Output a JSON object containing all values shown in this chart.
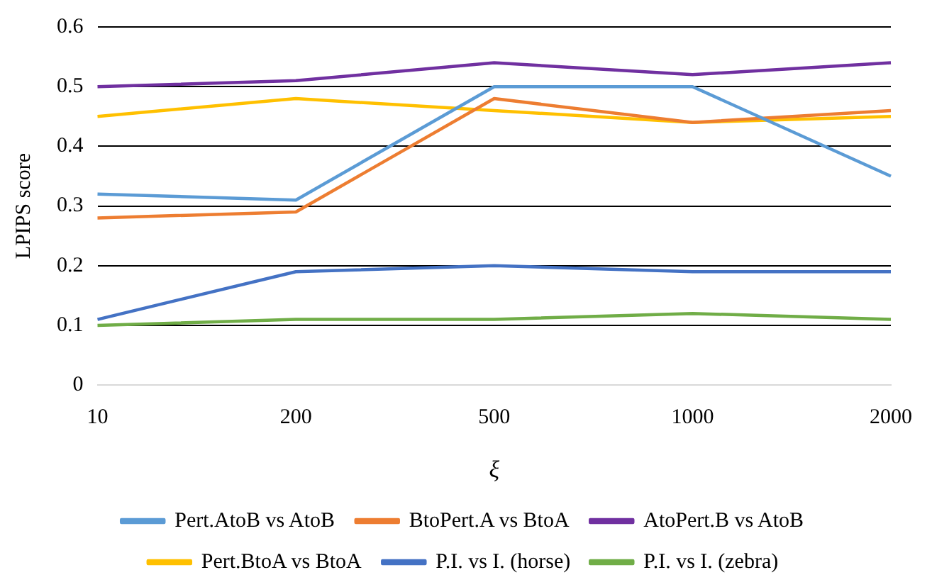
{
  "chart_data": {
    "type": "line",
    "xlabel": "ξ",
    "ylabel": "LPIPS score",
    "categories": [
      "10",
      "200",
      "500",
      "1000",
      "2000"
    ],
    "ylim": [
      0,
      0.6
    ],
    "yticks": [
      0,
      0.1,
      0.2,
      0.3,
      0.4,
      0.5,
      0.6
    ],
    "grid": "y",
    "legend": "bottom",
    "marker": "none",
    "series": [
      {
        "name": "Pert.AtoB vs AtoB",
        "color": "#5b9bd5",
        "values": [
          0.32,
          0.31,
          0.5,
          0.5,
          0.35
        ]
      },
      {
        "name": "BtoPert.A vs BtoA",
        "color": "#ed7d31",
        "values": [
          0.28,
          0.29,
          0.48,
          0.44,
          0.46
        ]
      },
      {
        "name": "AtoPert.B vs AtoB",
        "color": "#7030a0",
        "values": [
          0.5,
          0.51,
          0.54,
          0.52,
          0.54
        ]
      },
      {
        "name": "Pert.BtoA vs BtoA",
        "color": "#ffc000",
        "values": [
          0.45,
          0.48,
          0.46,
          0.44,
          0.45
        ]
      },
      {
        "name": "P.I. vs I. (horse)",
        "color": "#4472c4",
        "values": [
          0.11,
          0.19,
          0.2,
          0.19,
          0.19
        ]
      },
      {
        "name": "P.I. vs I. (zebra)",
        "color": "#70ad47",
        "values": [
          0.1,
          0.11,
          0.11,
          0.12,
          0.11
        ]
      }
    ]
  }
}
